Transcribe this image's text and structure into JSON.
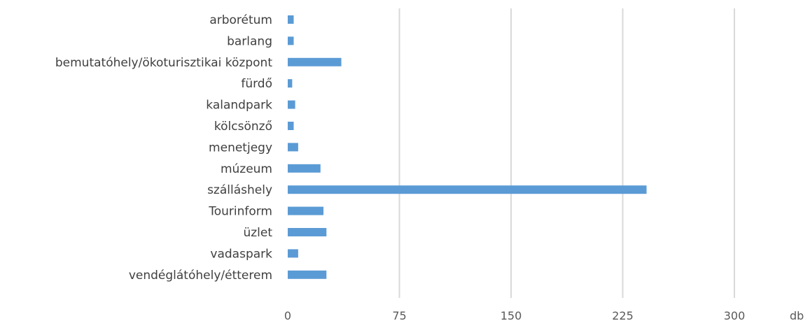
{
  "chart_data": {
    "type": "bar",
    "orientation": "horizontal",
    "categories": [
      "arborétum",
      "barlang",
      "bemutatóhely/ökoturisztikai központ",
      "fürdő",
      "kalandpark",
      "kölcsönző",
      "menetjegy",
      "múzeum",
      "szálláshely",
      "Tourinform",
      "üzlet",
      "vadaspark",
      "vendéglátóhely/étterem"
    ],
    "values": [
      4,
      4,
      36,
      3,
      5,
      4,
      7,
      22,
      241,
      24,
      26,
      7,
      26
    ],
    "xlim": [
      0,
      300
    ],
    "xticks": [
      0,
      75,
      150,
      225,
      300
    ],
    "xlabel": "db",
    "grid": true,
    "bar_color": "#5B9BD5",
    "grid_color": "#D9D9D9",
    "label_color": "#404040"
  }
}
